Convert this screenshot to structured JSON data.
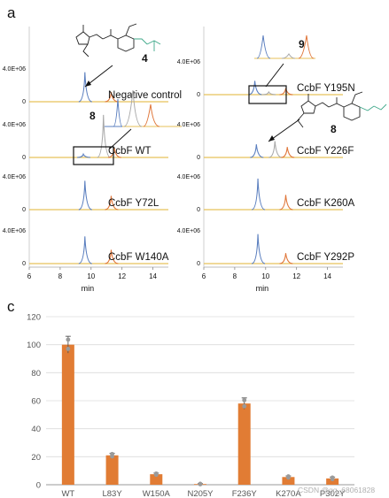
{
  "labels": {
    "panel_a": "a",
    "panel_c": "c",
    "trace_ytick_top": "4.0E+06",
    "trace_ytick_zero": "0",
    "compound_4": "4",
    "compound_8": "8",
    "compound_9": "9",
    "watermark": "CSDN @qq_68061828"
  },
  "colors": {
    "blue": "#5b7fbf",
    "gray": "#a8a8a8",
    "orange": "#e0763a",
    "baseline": "#e7c25a",
    "bar": "#e17c34",
    "num4": "#2d3a8c",
    "num9": "#e7a437",
    "green": "#3fa88a"
  },
  "chart_data": [
    {
      "type": "line",
      "xlabel": "min",
      "xticks": [
        6,
        8,
        10,
        12,
        14
      ],
      "xlim": [
        6,
        15
      ],
      "ytick_labels": [
        "0",
        "4.0E+06"
      ],
      "traces": [
        {
          "label": "Negative control",
          "peaks": [
            {
              "x": 9.6,
              "h": 0.9,
              "c": "blue"
            },
            {
              "x": 11.3,
              "h": 0.3,
              "c": "orange"
            }
          ]
        },
        {
          "label": "CcbF WT",
          "peaks": [
            {
              "x": 9.5,
              "h": 0.1,
              "c": "blue"
            },
            {
              "x": 10.8,
              "h": 1.3,
              "c": "gray"
            },
            {
              "x": 11.5,
              "h": 0.3,
              "c": "orange"
            }
          ]
        },
        {
          "label": "CcbF Y72L",
          "peaks": [
            {
              "x": 9.6,
              "h": 0.88,
              "c": "blue"
            },
            {
              "x": 11.3,
              "h": 0.42,
              "c": "orange"
            }
          ]
        },
        {
          "label": "CcbF W140A",
          "peaks": [
            {
              "x": 9.6,
              "h": 0.83,
              "c": "blue"
            },
            {
              "x": 11.3,
              "h": 0.42,
              "c": "orange"
            }
          ]
        }
      ]
    },
    {
      "type": "line",
      "xlabel": "min",
      "xticks": [
        6,
        8,
        10,
        12,
        14
      ],
      "xlim": [
        6,
        15
      ],
      "ytick_labels": [
        "0",
        "4.0E+06"
      ],
      "traces": [
        {
          "label": "CcbF Y195N",
          "peaks": [
            {
              "x": 9.3,
              "h": 0.42,
              "c": "blue"
            },
            {
              "x": 10.2,
              "h": 0.08,
              "c": "gray"
            },
            {
              "x": 11.3,
              "h": 0.2,
              "c": "orange"
            }
          ]
        },
        {
          "label": "CcbF Y226F",
          "peaks": [
            {
              "x": 9.4,
              "h": 0.4,
              "c": "blue"
            },
            {
              "x": 10.6,
              "h": 0.5,
              "c": "gray"
            },
            {
              "x": 11.4,
              "h": 0.32,
              "c": "orange"
            }
          ]
        },
        {
          "label": "CcbF K260A",
          "peaks": [
            {
              "x": 9.5,
              "h": 0.95,
              "c": "blue"
            },
            {
              "x": 11.3,
              "h": 0.45,
              "c": "orange"
            }
          ]
        },
        {
          "label": "CcbF Y292P",
          "peaks": [
            {
              "x": 9.5,
              "h": 0.9,
              "c": "blue"
            },
            {
              "x": 11.3,
              "h": 0.32,
              "c": "orange"
            }
          ]
        }
      ]
    },
    {
      "type": "bar",
      "categories": [
        "WT",
        "L83Y",
        "W150A",
        "N205Y",
        "F236Y",
        "K270A",
        "P302Y"
      ],
      "values": [
        100,
        21,
        7.5,
        0.5,
        58,
        5.5,
        4.5
      ],
      "errors": [
        6,
        1.5,
        0.8,
        0.3,
        4,
        0.8,
        1
      ],
      "ylim": [
        0,
        120
      ],
      "yticks": [
        0,
        20,
        40,
        60,
        80,
        100,
        120
      ],
      "grid": true
    }
  ]
}
